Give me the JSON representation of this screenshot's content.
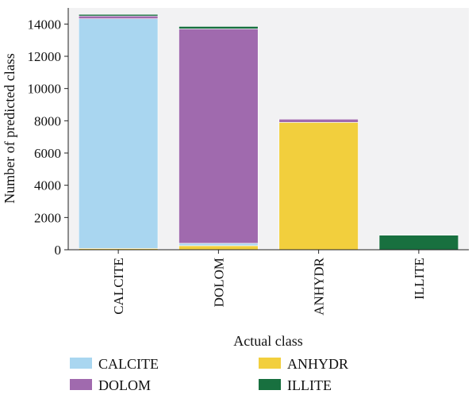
{
  "chart_data": {
    "type": "bar",
    "stacked": true,
    "title": "",
    "xlabel": "Actual class",
    "ylabel": "Number of predicted class",
    "categories": [
      "CALCITE",
      "DOLOM",
      "ANHYDR",
      "ILLITE"
    ],
    "ylim": [
      0,
      15000
    ],
    "yticks": [
      0,
      2000,
      4000,
      6000,
      8000,
      10000,
      12000,
      14000
    ],
    "grid": false,
    "legend_position": "bottom",
    "series": [
      {
        "name": "ANHYDR",
        "color": "#f2cf3d",
        "values": [
          80,
          250,
          7900,
          0
        ]
      },
      {
        "name": "CALCITE",
        "color": "#a9d6f0",
        "values": [
          14250,
          150,
          0,
          0
        ]
      },
      {
        "name": "DOLOM",
        "color": "#a06aae",
        "values": [
          170,
          13300,
          200,
          0
        ]
      },
      {
        "name": "ILLITE",
        "color": "#18703f",
        "values": [
          100,
          150,
          0,
          900
        ]
      }
    ],
    "legend_order": [
      "CALCITE",
      "ANHYDR",
      "DOLOM",
      "ILLITE"
    ]
  },
  "colors": {
    "plot_background": "#f2f2f3",
    "bar_edge": "#ffffff"
  }
}
